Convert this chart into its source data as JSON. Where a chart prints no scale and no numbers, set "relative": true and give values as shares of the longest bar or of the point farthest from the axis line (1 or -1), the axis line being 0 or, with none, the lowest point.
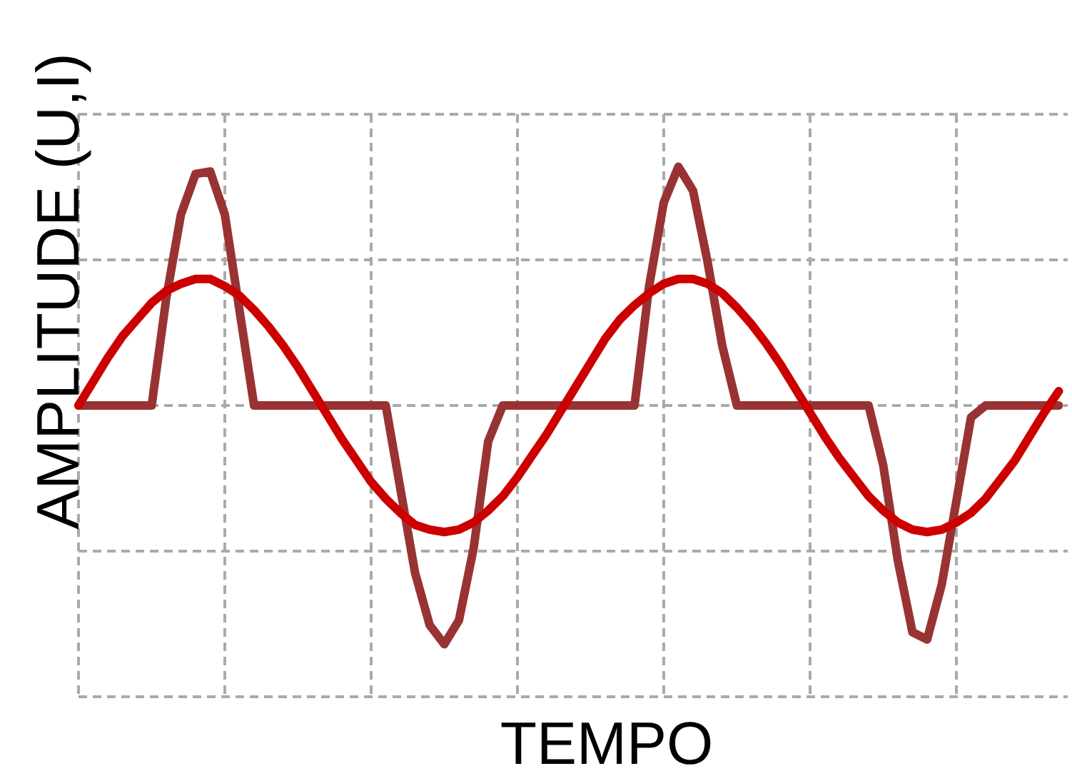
{
  "chart_data": {
    "type": "line",
    "relative": true,
    "xlabel": "TEMPO",
    "ylabel": "AMPLITUDE (U,I)",
    "grid": true,
    "marker": "none",
    "line_style": "solid",
    "categories": [
      null,
      null,
      null,
      null,
      null,
      null,
      null,
      null,
      null,
      null,
      null,
      null,
      null,
      null,
      null,
      null,
      null,
      null,
      null,
      null,
      null,
      null,
      null,
      null,
      null,
      null,
      null,
      null,
      null,
      null,
      null,
      null,
      null,
      null,
      null,
      null,
      null,
      null,
      null,
      null,
      null,
      null,
      null,
      null,
      null,
      null,
      null,
      null,
      null,
      null,
      null,
      null,
      null,
      null,
      null,
      null,
      null,
      null,
      null,
      null,
      null,
      null,
      null,
      null,
      null,
      null,
      null,
      null
    ],
    "series": [
      {
        "color": "#993333",
        "values": [
          0,
          0,
          0,
          0,
          0,
          0,
          0.45,
          0.8,
          0.97,
          0.98,
          0.8,
          0.4,
          0,
          0,
          0,
          0,
          0,
          0,
          0,
          0,
          0,
          0,
          -0.35,
          -0.7,
          -0.92,
          -1,
          -0.9,
          -0.6,
          -0.15,
          0,
          0,
          0,
          0,
          0,
          0,
          0,
          0,
          0,
          0,
          0.5,
          0.85,
          1,
          0.9,
          0.6,
          0.25,
          0,
          0,
          0,
          0,
          0,
          0,
          0,
          0,
          0,
          0,
          -0.25,
          -0.65,
          -0.95,
          -0.98,
          -0.75,
          -0.4,
          -0.05,
          0,
          0,
          0,
          0,
          0,
          0
        ]
      },
      {
        "color": "#cc0000",
        "values": [
          0,
          0.1,
          0.2,
          0.29,
          0.36,
          0.43,
          0.48,
          0.51,
          0.53,
          0.53,
          0.5,
          0.46,
          0.4,
          0.33,
          0.25,
          0.16,
          0.06,
          -0.04,
          -0.14,
          -0.23,
          -0.32,
          -0.39,
          -0.45,
          -0.5,
          -0.52,
          -0.53,
          -0.52,
          -0.49,
          -0.44,
          -0.38,
          -0.3,
          -0.21,
          -0.12,
          -0.02,
          0.08,
          0.18,
          0.28,
          0.36,
          0.42,
          0.47,
          0.51,
          0.53,
          0.53,
          0.51,
          0.47,
          0.41,
          0.34,
          0.26,
          0.17,
          0.07,
          -0.03,
          -0.13,
          -0.22,
          -0.3,
          -0.38,
          -0.44,
          -0.49,
          -0.52,
          -0.53,
          -0.52,
          -0.49,
          -0.45,
          -0.39,
          -0.31,
          -0.23,
          -0.13,
          -0.03,
          0.06
        ]
      }
    ]
  }
}
